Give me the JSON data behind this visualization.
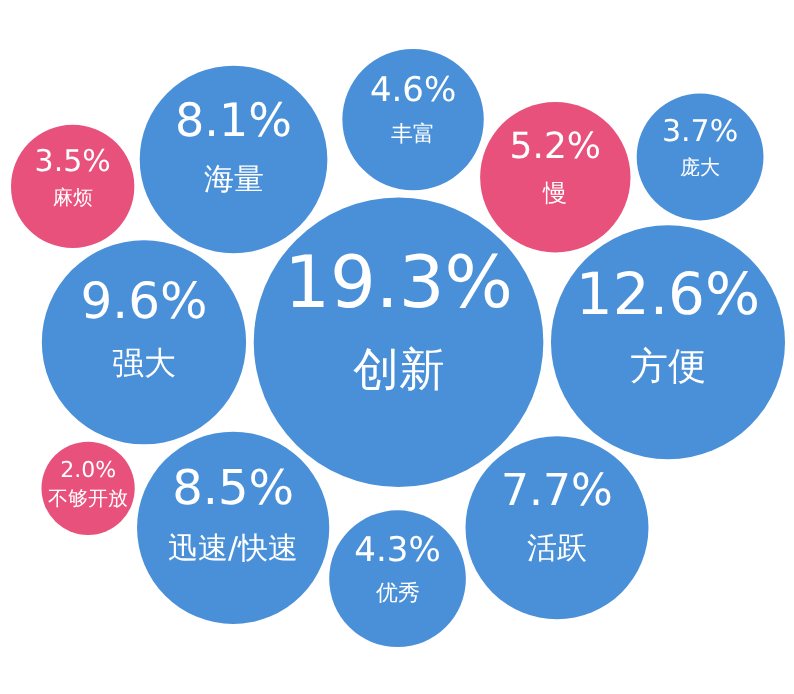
{
  "chart_data": {
    "type": "other",
    "categories": [
      "创新",
      "方便",
      "强大",
      "迅速/快速",
      "海量",
      "活跃",
      "慢",
      "丰富",
      "优秀",
      "庞大",
      "麻烦",
      "不够开放"
    ],
    "values": [
      19.3,
      12.6,
      9.6,
      8.5,
      8.1,
      7.7,
      5.2,
      4.6,
      4.3,
      3.7,
      3.5,
      2.0
    ],
    "value_labels": [
      "19.3%",
      "12.6%",
      "9.6%",
      "8.5%",
      "8.1%",
      "7.7%",
      "5.2%",
      "4.6%",
      "4.3%",
      "3.7%",
      "3.5%",
      "2.0%"
    ],
    "colors": [
      "#4a90d9",
      "#4a90d9",
      "#4a90d9",
      "#4a90d9",
      "#4a90d9",
      "#4a90d9",
      "#e8517b",
      "#4a90d9",
      "#4a90d9",
      "#4a90d9",
      "#e8517b",
      "#e8517b"
    ]
  }
}
